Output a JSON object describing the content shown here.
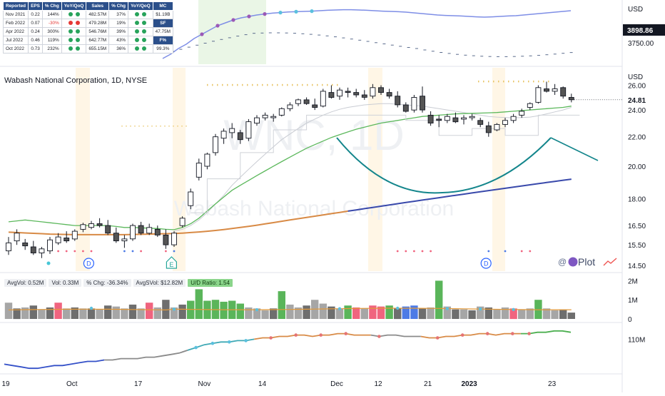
{
  "top_pane": {
    "currency": "USD",
    "price_label": "3898.86",
    "scale_labels": [
      "3750.00"
    ]
  },
  "earnings_table": {
    "headers": [
      "Reported",
      "EPS",
      "% Chg",
      "YoY/QoQ",
      "Sales",
      "% Chg",
      "YoY/QoQ",
      "MC"
    ],
    "rows": [
      {
        "date": "Nov 2021",
        "eps": "0.22",
        "eps_chg": "144%",
        "eps_neg": false,
        "dots1": [
          "#27a35b",
          "#27a35b"
        ],
        "sales": "482.57M",
        "sales_chg": "37%",
        "dots2": [
          "#27a35b",
          "#27a35b"
        ],
        "side": "$1.19B",
        "side_style": "plain"
      },
      {
        "date": "Feb 2022",
        "eps": "0.07",
        "eps_chg": "-30%",
        "eps_neg": true,
        "dots1": [
          "#e53935",
          "#e53935"
        ],
        "sales": "479.28M",
        "sales_chg": "19%",
        "dots2": [
          "#27a35b",
          "#27a35b"
        ],
        "side": "SF",
        "side_style": "header"
      },
      {
        "date": "Apr 2022",
        "eps": "0.24",
        "eps_chg": "300%",
        "eps_neg": false,
        "dots1": [
          "#27a35b",
          "#27a35b"
        ],
        "sales": "546.76M",
        "sales_chg": "39%",
        "dots2": [
          "#27a35b",
          "#27a35b"
        ],
        "side": "47.75M",
        "side_style": "plain"
      },
      {
        "date": "Jul 2022",
        "eps": "0.46",
        "eps_chg": "119%",
        "eps_neg": false,
        "dots1": [
          "#27a35b",
          "#27a35b"
        ],
        "sales": "642.77M",
        "sales_chg": "43%",
        "dots2": [
          "#27a35b",
          "#27a35b"
        ],
        "side": "F%",
        "side_style": "header"
      },
      {
        "date": "Oct 2022",
        "eps": "0.73",
        "eps_chg": "232%",
        "eps_neg": false,
        "dots1": [
          "#27a35b",
          "#27a35b"
        ],
        "sales": "655.15M",
        "sales_chg": "36%",
        "dots2": [
          "#27a35b",
          "#27a35b"
        ],
        "side": "99.3%",
        "side_style": "plain"
      }
    ]
  },
  "main_pane": {
    "title": "Wabash National Corporation, 1D, NYSE",
    "currency": "USD",
    "price_label": "24.81",
    "watermark_ticker": "WNC, 1D",
    "watermark_name": "Wabash National Corporation",
    "event_markers": [
      {
        "label": "D",
        "x_index": 9
      },
      {
        "label": "E",
        "x_index": 19
      },
      {
        "label": "D",
        "x_index": 57
      }
    ],
    "logo_text": "@",
    "logo_text2": "Plot"
  },
  "volume_pane": {
    "chips": [
      {
        "text": "AvgVol: 0.52M",
        "style": "plain"
      },
      {
        "text": "Vol: 0.33M",
        "style": "plain"
      },
      {
        "text": "% Chg: -36.34%",
        "style": "plain"
      },
      {
        "text": "AvgSVol: $12.82M",
        "style": "plain"
      },
      {
        "text": "U/D Ratio: 1.54",
        "style": "ud"
      }
    ],
    "scale_labels": [
      "2M",
      "1M",
      "0"
    ]
  },
  "indicator_pane": {
    "scale_label": "110M"
  },
  "x_axis": {
    "labels": [
      {
        "text": "19",
        "index": 0,
        "bold": false
      },
      {
        "text": "Oct",
        "index": 8,
        "bold": false
      },
      {
        "text": "17",
        "index": 16,
        "bold": false
      },
      {
        "text": "Nov",
        "index": 24,
        "bold": false
      },
      {
        "text": "14",
        "index": 31,
        "bold": false
      },
      {
        "text": "Dec",
        "index": 40,
        "bold": false
      },
      {
        "text": "12",
        "index": 45,
        "bold": false
      },
      {
        "text": "21",
        "index": 51,
        "bold": false
      },
      {
        "text": "2023",
        "index": 56,
        "bold": true
      },
      {
        "text": "23",
        "index": 66,
        "bold": false
      }
    ]
  },
  "chart_data": {
    "type": "candlestick",
    "title": "Wabash National Corporation, 1D, NYSE",
    "currency": "USD",
    "y_scale": "log",
    "y_ticks": [
      14.5,
      15.5,
      16.5,
      18,
      20,
      22,
      24,
      26
    ],
    "ylim": [
      14.3,
      27.2
    ],
    "last_price": 24.81,
    "grid": false,
    "candles": [
      [
        15.2,
        15.9,
        15.0,
        15.6
      ],
      [
        15.7,
        16.3,
        15.5,
        16.1
      ],
      [
        15.6,
        15.8,
        15.25,
        15.45
      ],
      [
        15.4,
        15.7,
        15.0,
        15.1
      ],
      [
        15.1,
        15.4,
        14.85,
        15.3
      ],
      [
        15.2,
        15.9,
        15.05,
        15.75
      ],
      [
        15.6,
        16.1,
        15.5,
        15.9
      ],
      [
        15.85,
        16.2,
        15.6,
        15.7
      ],
      [
        15.8,
        16.3,
        15.7,
        16.2
      ],
      [
        16.3,
        16.65,
        16.15,
        16.55
      ],
      [
        16.4,
        16.75,
        16.3,
        16.6
      ],
      [
        16.6,
        16.9,
        16.4,
        16.5
      ],
      [
        16.5,
        16.8,
        16.0,
        16.1
      ],
      [
        16.1,
        16.4,
        15.6,
        15.7
      ],
      [
        15.7,
        16.0,
        15.35,
        15.8
      ],
      [
        15.8,
        16.6,
        15.7,
        16.5
      ],
      [
        16.5,
        16.7,
        16.0,
        16.1
      ],
      [
        16.1,
        16.6,
        16.0,
        16.4
      ],
      [
        16.3,
        16.5,
        15.9,
        16.0
      ],
      [
        16.0,
        16.3,
        15.3,
        15.5
      ],
      [
        15.5,
        16.2,
        15.4,
        16.1
      ],
      [
        16.5,
        17.0,
        16.4,
        16.9
      ],
      [
        17.6,
        18.6,
        17.4,
        18.4
      ],
      [
        19.3,
        20.5,
        19.1,
        20.2
      ],
      [
        20.0,
        20.9,
        19.8,
        20.8
      ],
      [
        20.9,
        22.2,
        20.7,
        22.0
      ],
      [
        21.9,
        22.6,
        21.5,
        22.4
      ],
      [
        22.3,
        23.0,
        21.9,
        22.6
      ],
      [
        22.3,
        22.5,
        21.5,
        21.8
      ],
      [
        21.9,
        23.3,
        21.7,
        23.1
      ],
      [
        23.0,
        23.6,
        22.8,
        23.4
      ],
      [
        23.4,
        23.8,
        23.2,
        23.6
      ],
      [
        23.4,
        23.7,
        23.1,
        23.5
      ],
      [
        23.6,
        24.2,
        23.5,
        24.1
      ],
      [
        24.1,
        24.6,
        23.9,
        24.4
      ],
      [
        24.5,
        24.9,
        24.3,
        24.8
      ],
      [
        24.8,
        25.0,
        24.4,
        24.5
      ],
      [
        24.4,
        24.9,
        24.0,
        24.2
      ],
      [
        24.3,
        25.7,
        24.2,
        25.5
      ],
      [
        25.4,
        26.0,
        24.9,
        25.0
      ],
      [
        25.1,
        25.8,
        24.8,
        25.6
      ],
      [
        25.5,
        25.8,
        25.0,
        25.4
      ],
      [
        25.4,
        25.7,
        25.0,
        25.2
      ],
      [
        25.2,
        25.6,
        24.8,
        25.0
      ],
      [
        25.1,
        26.1,
        24.9,
        25.8
      ],
      [
        25.8,
        26.0,
        25.2,
        25.4
      ],
      [
        25.4,
        25.7,
        24.9,
        25.1
      ],
      [
        25.1,
        25.5,
        24.2,
        24.4
      ],
      [
        24.4,
        24.6,
        23.8,
        23.9
      ],
      [
        24.0,
        25.2,
        23.8,
        25.0
      ],
      [
        25.1,
        25.9,
        23.8,
        24.0
      ],
      [
        23.6,
        23.9,
        22.8,
        23.0
      ],
      [
        23.3,
        23.6,
        22.7,
        23.2
      ],
      [
        23.2,
        23.7,
        23.0,
        23.5
      ],
      [
        23.4,
        23.8,
        23.0,
        23.1
      ],
      [
        23.3,
        23.6,
        22.9,
        23.4
      ],
      [
        23.4,
        23.7,
        23.2,
        23.5
      ],
      [
        23.2,
        23.4,
        22.7,
        22.9
      ],
      [
        22.8,
        23.1,
        22.0,
        22.3
      ],
      [
        22.5,
        23.0,
        22.4,
        22.9
      ],
      [
        22.9,
        23.4,
        22.7,
        23.2
      ],
      [
        23.2,
        23.7,
        23.0,
        23.5
      ],
      [
        23.6,
        24.1,
        23.4,
        23.9
      ],
      [
        24.2,
        24.6,
        24.0,
        24.5
      ],
      [
        24.6,
        26.0,
        24.5,
        25.8
      ],
      [
        25.7,
        26.3,
        25.4,
        25.5
      ],
      [
        25.5,
        26.1,
        25.2,
        25.7
      ],
      [
        25.8,
        25.9,
        24.9,
        25.1
      ],
      [
        25.0,
        25.3,
        24.6,
        24.81
      ]
    ],
    "ma_green": [
      16.7,
      16.75,
      16.8,
      16.75,
      16.7,
      16.65,
      16.6,
      16.55,
      16.5,
      16.5,
      16.5,
      16.5,
      16.5,
      16.45,
      16.4,
      16.4,
      16.38,
      16.36,
      16.34,
      16.3,
      16.28,
      16.4,
      16.6,
      16.9,
      17.3,
      17.7,
      18.1,
      18.5,
      18.8,
      19.1,
      19.4,
      19.7,
      20.0,
      20.3,
      20.6,
      20.9,
      21.2,
      21.45,
      21.7,
      21.95,
      22.15,
      22.35,
      22.55,
      22.7,
      22.85,
      23.0,
      23.1,
      23.2,
      23.3,
      23.4,
      23.5,
      23.55,
      23.6,
      23.65,
      23.7,
      23.72,
      23.74,
      23.76,
      23.78,
      23.8,
      23.85,
      23.9,
      23.95,
      24.0,
      24.05,
      24.1,
      24.15,
      24.2,
      24.3
    ],
    "ma_gray": [
      null,
      null,
      null,
      null,
      null,
      null,
      null,
      null,
      null,
      null,
      null,
      null,
      null,
      null,
      null,
      null,
      null,
      null,
      null,
      null,
      16.2,
      16.3,
      16.5,
      16.8,
      17.2,
      17.7,
      18.2,
      18.8,
      19.3,
      19.8,
      20.3,
      20.8,
      21.3,
      21.8,
      22.2,
      22.6,
      23.0,
      23.3,
      23.6,
      23.85,
      24.05,
      24.2,
      24.3,
      24.4,
      24.45,
      24.5,
      24.5,
      24.45,
      24.4,
      24.35,
      24.3,
      24.2,
      24.1,
      24.0,
      23.9,
      23.8,
      23.7,
      23.6,
      23.5,
      23.45,
      23.42,
      23.4,
      23.42,
      23.45,
      23.55,
      23.7,
      23.85,
      24.0,
      24.2
    ],
    "ma_long": [
      16.15,
      16.13,
      16.11,
      16.09,
      16.07,
      16.05,
      16.04,
      16.03,
      16.02,
      16.02,
      16.02,
      16.02,
      16.02,
      16.02,
      16.02,
      16.03,
      16.04,
      16.05,
      16.06,
      16.07,
      16.08,
      16.1,
      16.13,
      16.16,
      16.2,
      16.24,
      16.29,
      16.34,
      16.4,
      16.46,
      16.52,
      16.59,
      16.66,
      16.73,
      16.8,
      16.87,
      16.94,
      17.01,
      17.08,
      17.15,
      17.22,
      17.29,
      17.36,
      17.43,
      17.5,
      17.57,
      17.64,
      17.71,
      17.78,
      17.85,
      17.92,
      17.99,
      18.06,
      18.13,
      18.2,
      18.27,
      18.34,
      18.41,
      18.48,
      18.55,
      18.62,
      18.69,
      18.76,
      18.83,
      18.9,
      18.97,
      19.04,
      19.11,
      19.18
    ],
    "long_ma_switch_index": 41,
    "volume": [
      {
        "v": 0.85,
        "c": "#a6a6a6"
      },
      {
        "v": 0.55,
        "c": "#6e6e6e"
      },
      {
        "v": 0.6,
        "c": "#a6a6a6"
      },
      {
        "v": 0.7,
        "c": "#6e6e6e"
      },
      {
        "v": 0.5,
        "c": "#a6a6a6"
      },
      {
        "v": 0.6,
        "c": "#6e6e6e"
      },
      {
        "v": 0.85,
        "c": "#f0647f"
      },
      {
        "v": 0.55,
        "c": "#a6a6a6"
      },
      {
        "v": 0.6,
        "c": "#6e6e6e"
      },
      {
        "v": 0.55,
        "c": "#a6a6a6"
      },
      {
        "v": 0.55,
        "c": "#6e6e6e"
      },
      {
        "v": 0.5,
        "c": "#a6a6a6"
      },
      {
        "v": 0.7,
        "c": "#6e6e6e"
      },
      {
        "v": 0.65,
        "c": "#a6a6a6"
      },
      {
        "v": 0.55,
        "c": "#a6a6a6"
      },
      {
        "v": 0.75,
        "c": "#6e6e6e"
      },
      {
        "v": 0.55,
        "c": "#a6a6a6"
      },
      {
        "v": 0.85,
        "c": "#f0647f"
      },
      {
        "v": 0.6,
        "c": "#a6a6a6"
      },
      {
        "v": 1.0,
        "c": "#6e6e6e"
      },
      {
        "v": 0.6,
        "c": "#a6a6a6"
      },
      {
        "v": 0.75,
        "c": "#6e6e6e"
      },
      {
        "v": 0.95,
        "c": "#5ab55a"
      },
      {
        "v": 1.55,
        "c": "#5ab55a"
      },
      {
        "v": 0.95,
        "c": "#5ab55a"
      },
      {
        "v": 1.0,
        "c": "#5ab55a"
      },
      {
        "v": 0.9,
        "c": "#5ab55a"
      },
      {
        "v": 0.95,
        "c": "#5ab55a"
      },
      {
        "v": 0.8,
        "c": "#5ab55a"
      },
      {
        "v": 0.6,
        "c": "#a6a6a6"
      },
      {
        "v": 0.55,
        "c": "#a6a6a6"
      },
      {
        "v": 0.45,
        "c": "#a6a6a6"
      },
      {
        "v": 0.55,
        "c": "#6e6e6e"
      },
      {
        "v": 1.45,
        "c": "#5ab55a"
      },
      {
        "v": 0.75,
        "c": "#a6a6a6"
      },
      {
        "v": 0.6,
        "c": "#a6a6a6"
      },
      {
        "v": 0.7,
        "c": "#6e6e6e"
      },
      {
        "v": 1.0,
        "c": "#a6a6a6"
      },
      {
        "v": 0.8,
        "c": "#a6a6a6"
      },
      {
        "v": 0.65,
        "c": "#6e6e6e"
      },
      {
        "v": 0.55,
        "c": "#a6a6a6"
      },
      {
        "v": 0.7,
        "c": "#5ab55a"
      },
      {
        "v": 0.6,
        "c": "#f0647f"
      },
      {
        "v": 0.55,
        "c": "#a6a6a6"
      },
      {
        "v": 0.7,
        "c": "#f0647f"
      },
      {
        "v": 0.65,
        "c": "#f0647f"
      },
      {
        "v": 0.7,
        "c": "#5ab55a"
      },
      {
        "v": 0.55,
        "c": "#6e6e6e"
      },
      {
        "v": 0.65,
        "c": "#4d7be6"
      },
      {
        "v": 0.7,
        "c": "#4d7be6"
      },
      {
        "v": 0.55,
        "c": "#6e6e6e"
      },
      {
        "v": 0.6,
        "c": "#a6a6a6"
      },
      {
        "v": 2.0,
        "c": "#5ab55a"
      },
      {
        "v": 0.65,
        "c": "#a6a6a6"
      },
      {
        "v": 0.5,
        "c": "#6e6e6e"
      },
      {
        "v": 0.5,
        "c": "#a6a6a6"
      },
      {
        "v": 0.45,
        "c": "#6e6e6e"
      },
      {
        "v": 0.65,
        "c": "#a6a6a6"
      },
      {
        "v": 0.6,
        "c": "#6e6e6e"
      },
      {
        "v": 0.5,
        "c": "#a6a6a6"
      },
      {
        "v": 0.6,
        "c": "#a6a6a6"
      },
      {
        "v": 0.55,
        "c": "#f0647f"
      },
      {
        "v": 0.5,
        "c": "#a6a6a6"
      },
      {
        "v": 0.55,
        "c": "#a6a6a6"
      },
      {
        "v": 1.0,
        "c": "#5ab55a"
      },
      {
        "v": 0.55,
        "c": "#a6a6a6"
      },
      {
        "v": 0.45,
        "c": "#a6a6a6"
      },
      {
        "v": 0.5,
        "c": "#6e6e6e"
      },
      {
        "v": 0.33,
        "c": "#6e6e6e"
      }
    ],
    "volume_ylim": [
      0,
      2.2
    ],
    "volume_unit": "M",
    "volume_avg": 0.52,
    "indicator_line": [
      92,
      91,
      90,
      89,
      89,
      90,
      91,
      91,
      92,
      93,
      94,
      94,
      95,
      95,
      96,
      96,
      96,
      97,
      97,
      98,
      99,
      100,
      102,
      104,
      106,
      107,
      108,
      108,
      109,
      109,
      110,
      111,
      111,
      112,
      112,
      113,
      113,
      112,
      113,
      113,
      114,
      114,
      113,
      113,
      113,
      112,
      113,
      113,
      112,
      112,
      112,
      111,
      111,
      112,
      112,
      113,
      113,
      114,
      114,
      113,
      114,
      114,
      114,
      114,
      115,
      115,
      116,
      116,
      115
    ],
    "indicator_ylim": [
      86,
      120
    ],
    "indicator_scale_tick": 110,
    "top_line": [
      3620,
      3650,
      3690,
      3720,
      3760,
      3790,
      3820,
      3850,
      3870,
      3890,
      3905,
      3915,
      3925,
      3932,
      3938,
      3942,
      3946,
      3948,
      3950,
      3952,
      3955,
      3958,
      3960,
      3962,
      3962,
      3960,
      3958,
      3955,
      3952,
      3950,
      3948,
      3945,
      3940,
      3935,
      3930,
      3925,
      3922,
      3920,
      3918,
      3915,
      3912,
      3910,
      3912,
      3915,
      3918,
      3920,
      3925,
      3930,
      3935,
      3940,
      3945,
      3950,
      3955
    ],
    "top_ylim": [
      3620,
      3980
    ]
  }
}
